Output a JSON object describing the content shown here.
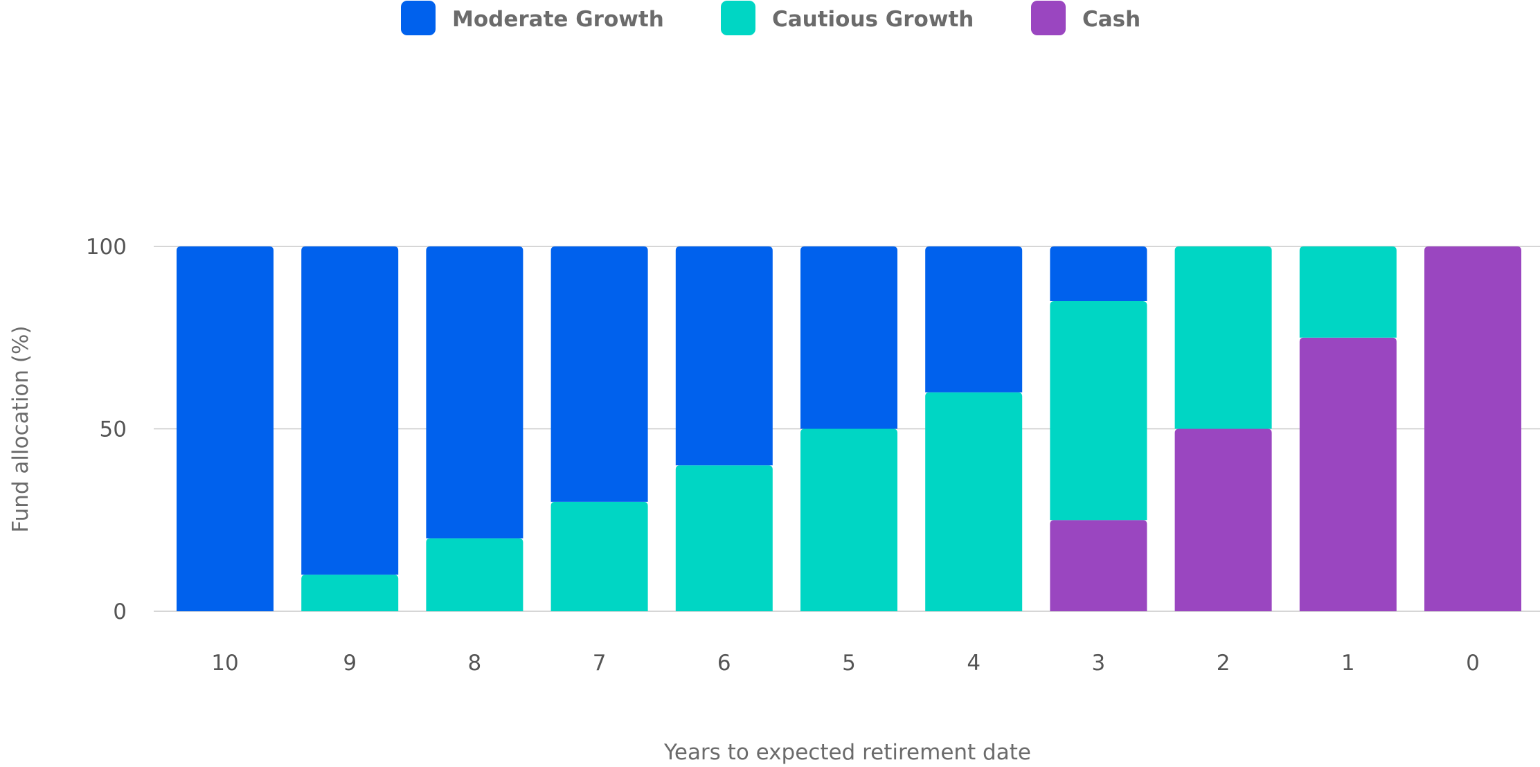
{
  "chart_data": {
    "type": "bar",
    "stacked": true,
    "title": "",
    "xlabel": "Years to expected retirement date",
    "ylabel": "Fund allocation (%)",
    "ylim": [
      0,
      100
    ],
    "yticks": [
      "0",
      "50",
      "100"
    ],
    "grid": true,
    "legend_position": "top-center",
    "categories": [
      "10",
      "9",
      "8",
      "7",
      "6",
      "5",
      "4",
      "3",
      "2",
      "1",
      "0"
    ],
    "series": [
      {
        "name": "Cash",
        "color": "#9a46c0",
        "values": [
          0,
          0,
          0,
          0,
          0,
          0,
          0,
          25,
          50,
          75,
          100
        ]
      },
      {
        "name": "Cautious Growth",
        "color": "#00d6c4",
        "values": [
          0,
          10,
          20,
          30,
          40,
          50,
          60,
          60,
          50,
          25,
          0
        ]
      },
      {
        "name": "Moderate Growth",
        "color": "#0061ed",
        "values": [
          100,
          90,
          80,
          70,
          60,
          50,
          40,
          15,
          0,
          0,
          0
        ]
      }
    ],
    "legend_order": [
      "Moderate Growth",
      "Cautious Growth",
      "Cash"
    ]
  }
}
